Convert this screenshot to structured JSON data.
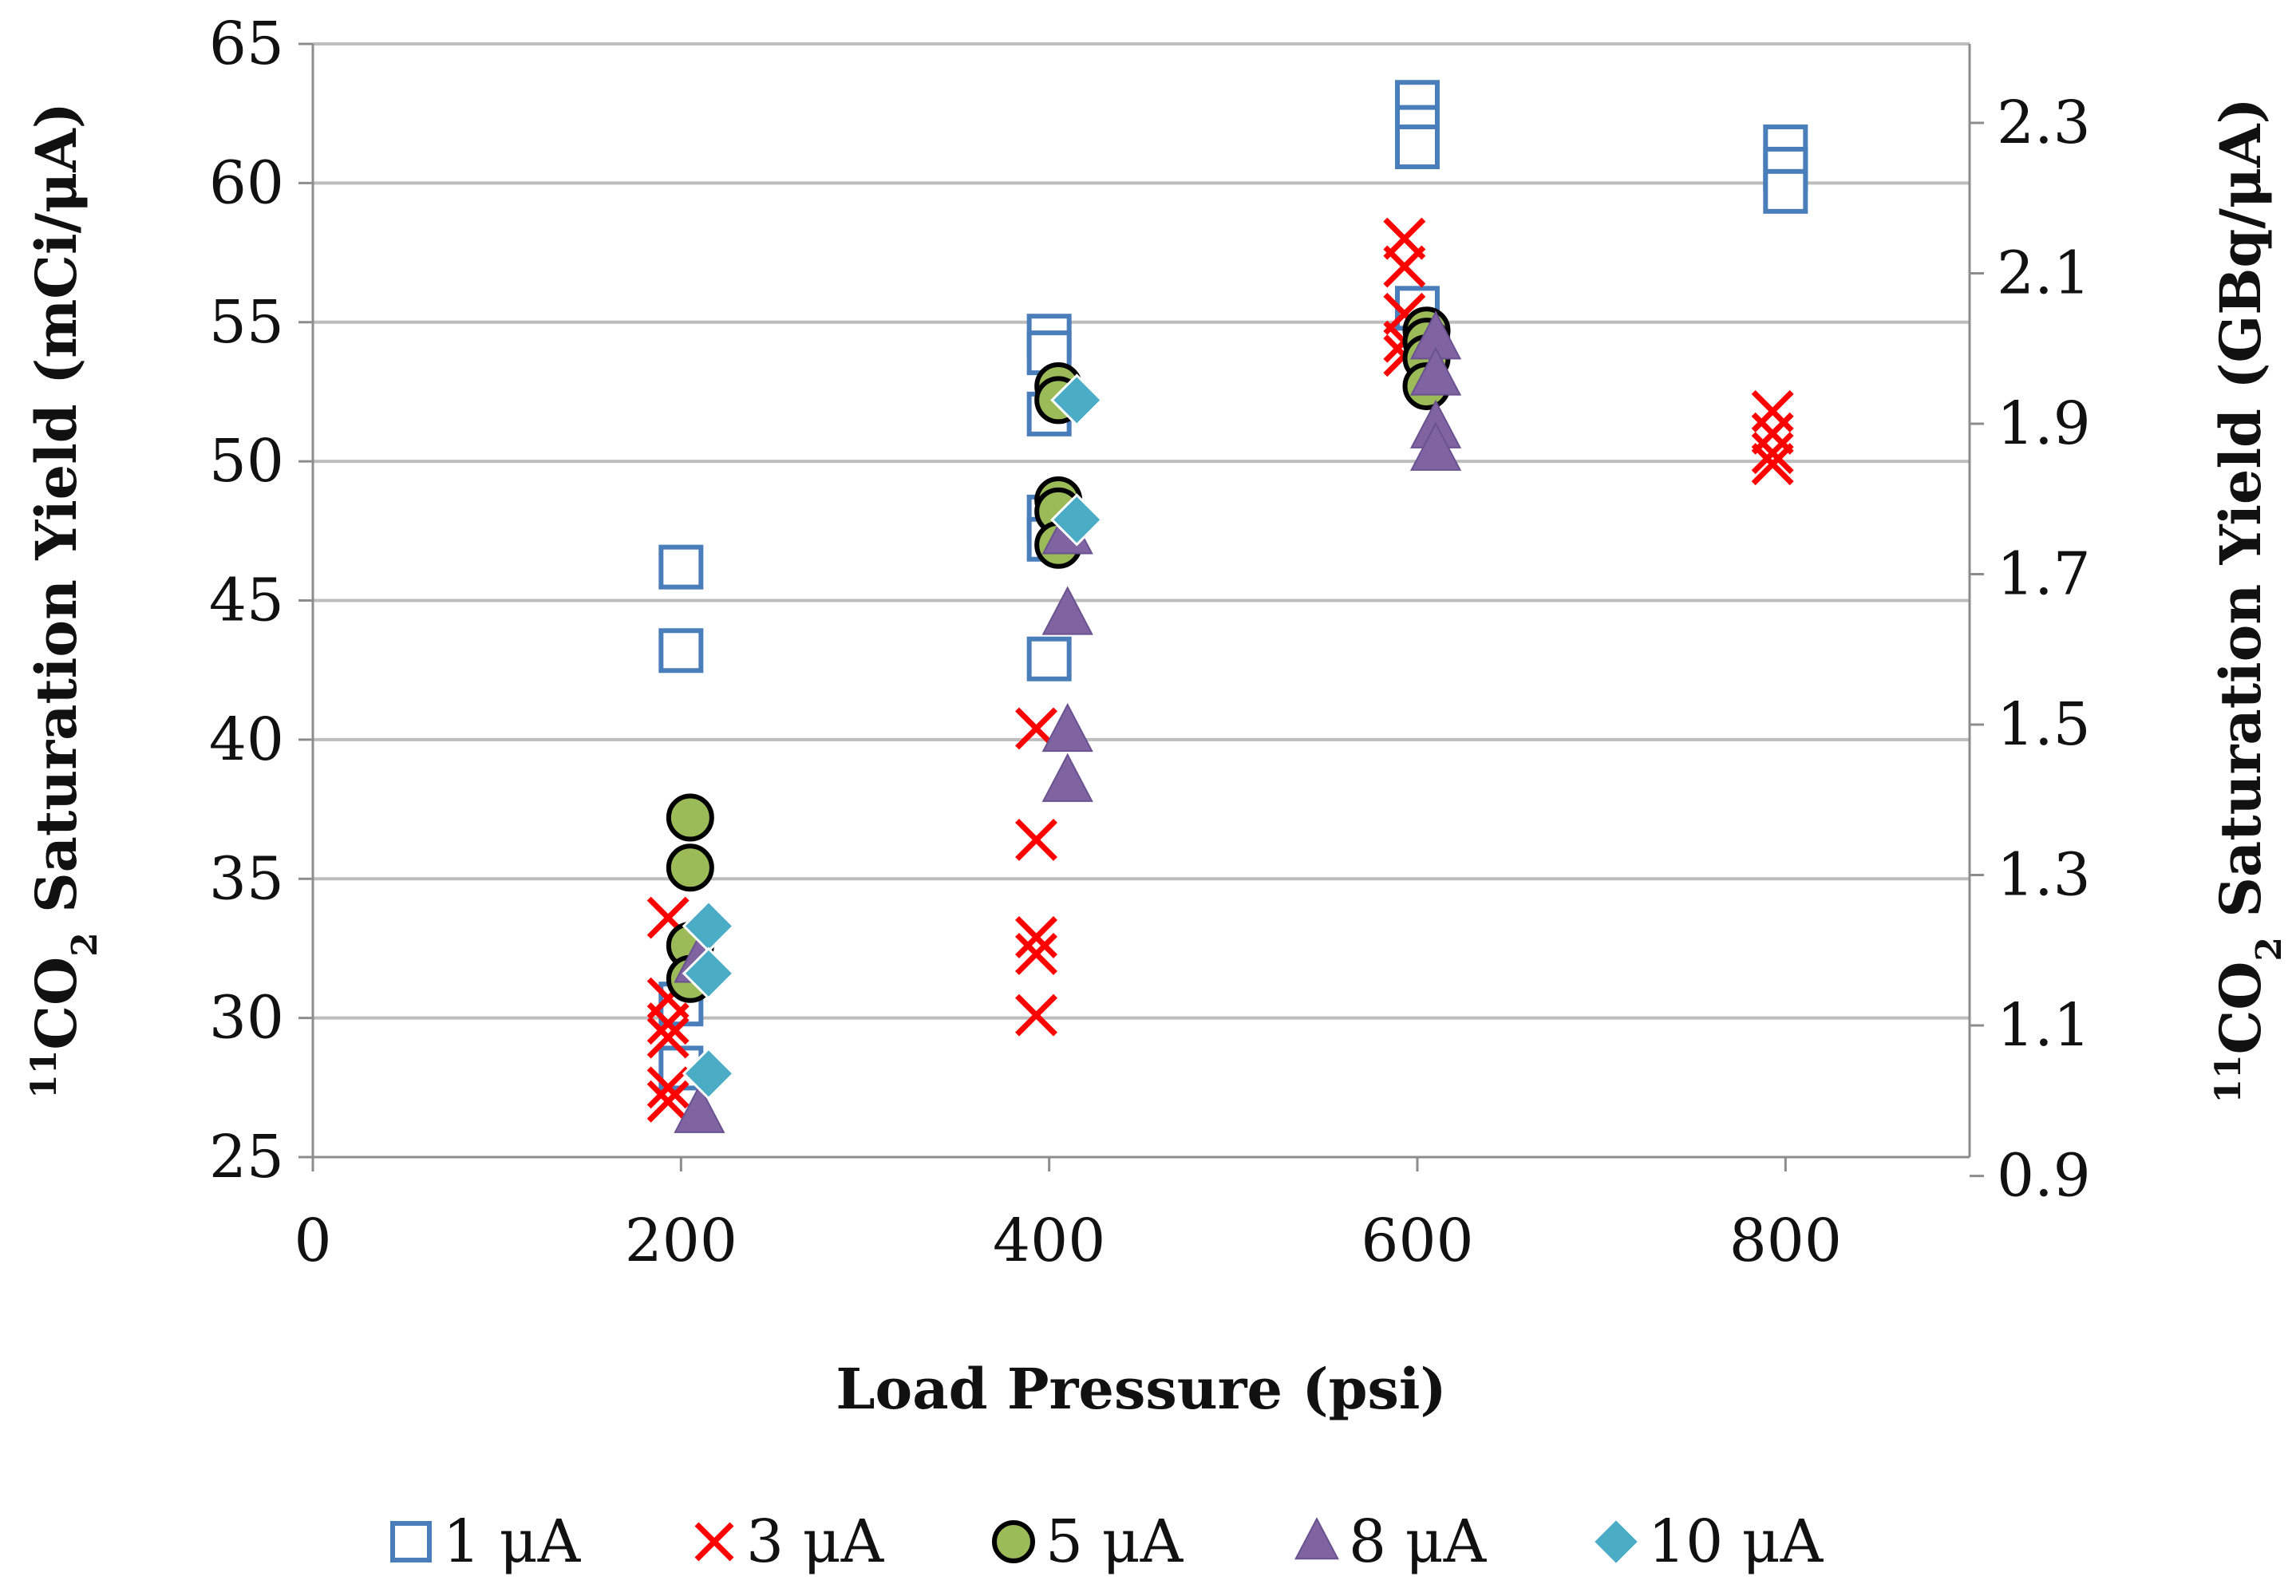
{
  "chart_data": {
    "type": "scatter",
    "title": "",
    "xlabel": "Load Pressure (psi)",
    "ylabel_prefix": "11",
    "ylabel_main": "CO",
    "ylabel_sub": "2",
    "ylabel_suffix": " Saturation Yield (mCi/μA)",
    "y2label_prefix": "11",
    "y2label_main": "CO",
    "y2label_sub": "2",
    "y2label_suffix": " Saturation Yield (GBq/μA)",
    "xlim": [
      0,
      900
    ],
    "ylim": [
      25,
      65
    ],
    "y2lim": [
      0.925,
      2.405
    ],
    "x_ticks": [
      "0",
      "200",
      "400",
      "600",
      "800"
    ],
    "x_tick_values": [
      0,
      200,
      400,
      600,
      800
    ],
    "y_ticks": [
      "25",
      "30",
      "35",
      "40",
      "45",
      "50",
      "55",
      "60",
      "65"
    ],
    "y_tick_values": [
      25,
      30,
      35,
      40,
      45,
      50,
      55,
      60,
      65
    ],
    "y2_ticks": [
      "0.9",
      "1.1",
      "1.3",
      "1.5",
      "1.7",
      "1.9",
      "2.1",
      "2.3"
    ],
    "y2_tick_values": [
      0.9,
      1.1,
      1.3,
      1.5,
      1.7,
      1.9,
      2.1,
      2.3
    ],
    "grid": true,
    "legend_position": "bottom",
    "series": [
      {
        "name": "1 μA",
        "label": "1 μA",
        "marker": "square",
        "color": "#4a7ebb",
        "x": [
          200,
          200,
          200,
          200,
          400,
          400,
          400,
          400,
          400,
          400,
          600,
          600,
          600,
          600,
          800,
          800,
          800
        ],
        "y": [
          46.2,
          43.2,
          30.5,
          28.2,
          54.5,
          53.9,
          51.7,
          48.0,
          47.2,
          42.9,
          62.9,
          62.0,
          61.3,
          55.5,
          61.3,
          60.5,
          59.7
        ]
      },
      {
        "name": "3 μA",
        "label": "3 μA",
        "marker": "x",
        "color": "#ff0000",
        "x": [
          193,
          193,
          193,
          193,
          193,
          193,
          393,
          393,
          393,
          393,
          393,
          593,
          593,
          593,
          593,
          593,
          793,
          793,
          793,
          793
        ],
        "y": [
          33.6,
          30.7,
          29.8,
          29.3,
          27.5,
          27.0,
          40.4,
          36.4,
          32.9,
          32.3,
          30.1,
          58.0,
          57.0,
          55.3,
          54.3,
          53.8,
          51.8,
          51.0,
          50.3,
          49.9
        ]
      },
      {
        "name": "5 μA",
        "label": "5 μA",
        "marker": "circle",
        "color": "#9bbb59",
        "x": [
          205,
          205,
          205,
          205,
          405,
          405,
          405,
          405,
          405,
          605,
          605,
          605,
          605
        ],
        "y": [
          37.2,
          35.4,
          32.6,
          31.4,
          52.7,
          52.2,
          48.6,
          48.2,
          47.0,
          54.7,
          54.3,
          53.7,
          52.7
        ]
      },
      {
        "name": "8 μA",
        "label": "8 μA",
        "marker": "triangle",
        "color": "#8064a2",
        "x": [
          210,
          210,
          410,
          410,
          410,
          410,
          610,
          610,
          610,
          610
        ],
        "y": [
          32.0,
          26.6,
          47.4,
          44.5,
          40.3,
          38.5,
          54.4,
          53.1,
          51.2,
          50.4
        ]
      },
      {
        "name": "10 μA",
        "label": "10 μA",
        "marker": "diamond",
        "color": "#4bacc6",
        "x": [
          215,
          215,
          215,
          415,
          415
        ],
        "y": [
          33.3,
          31.6,
          28.0,
          52.2,
          47.9
        ]
      }
    ]
  }
}
